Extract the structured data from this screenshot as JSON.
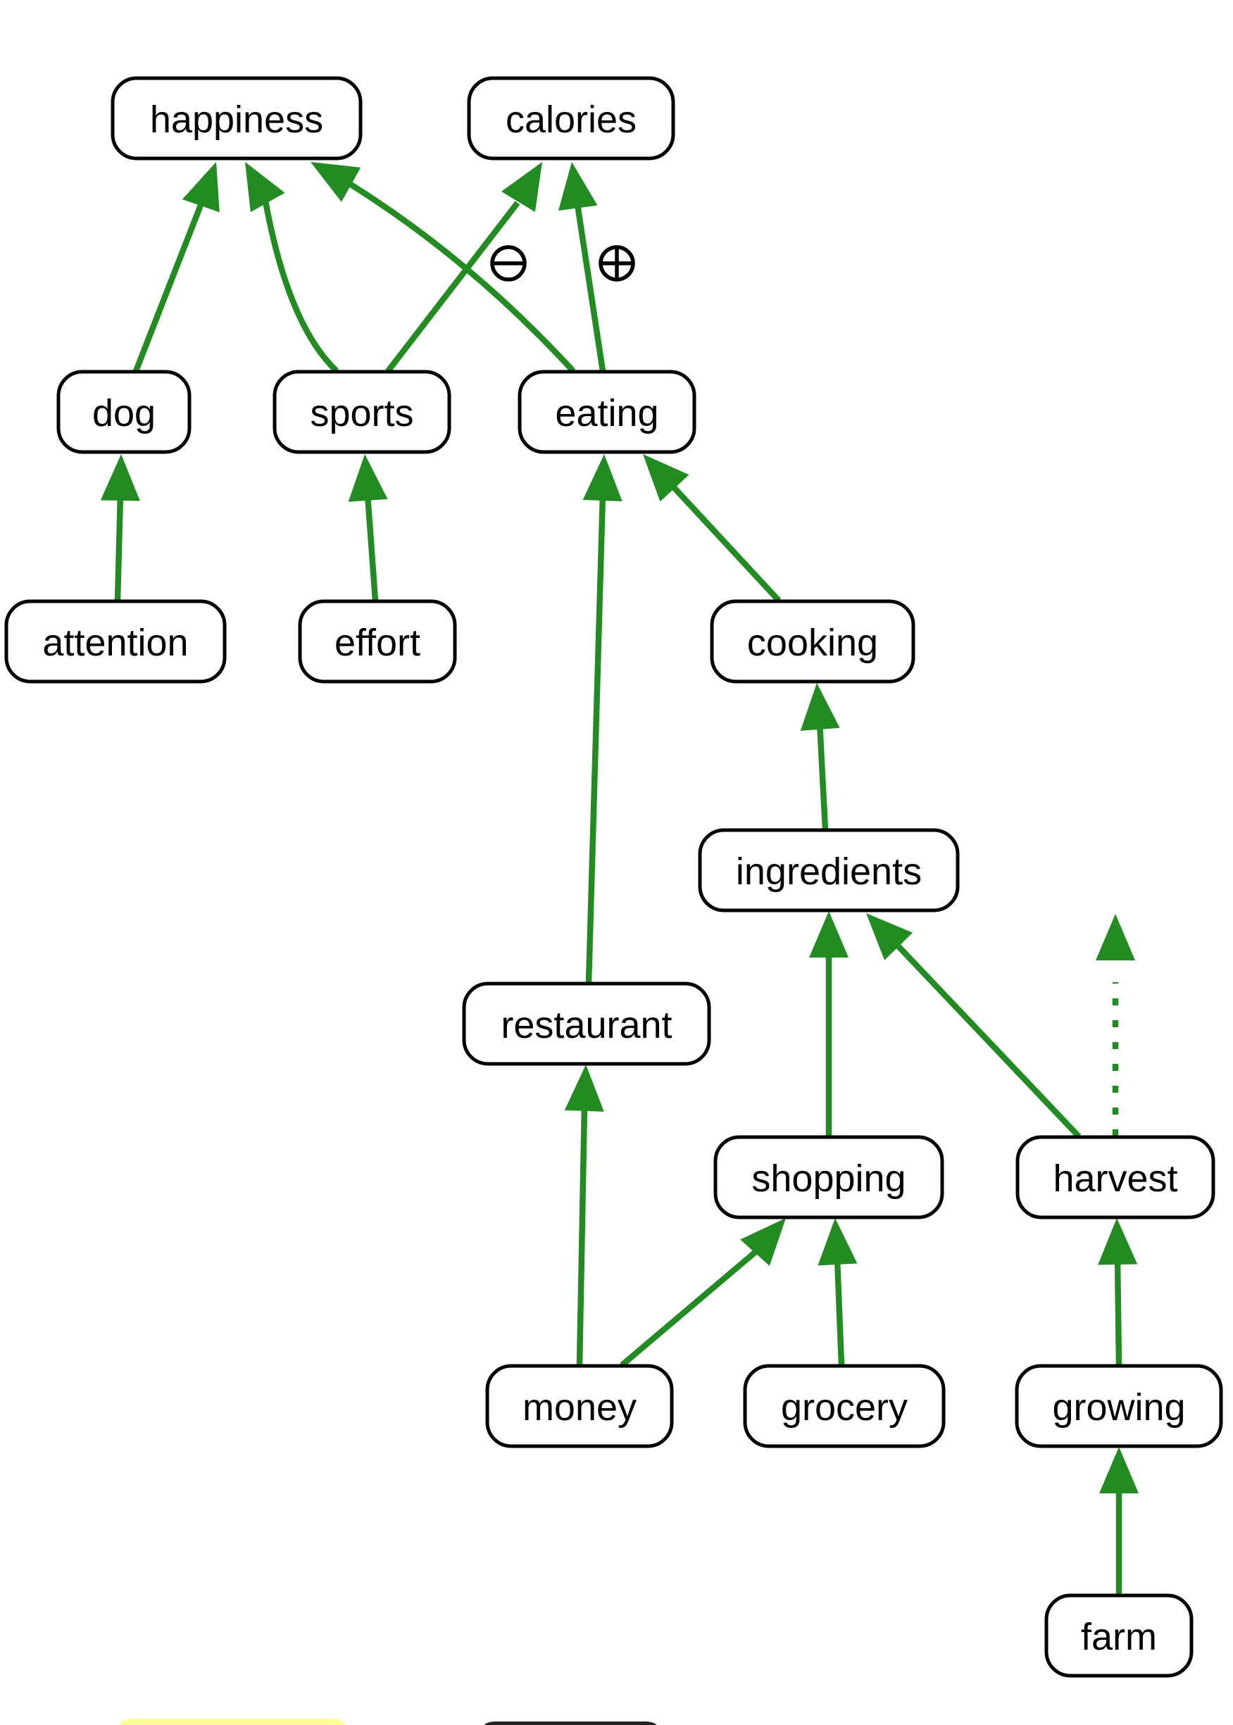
{
  "diagram": {
    "colors": {
      "edge": "#228b22",
      "node_border": "#000000",
      "node_fill": "#ffffff",
      "text": "#000000"
    },
    "nodes": [
      {
        "id": "happiness",
        "label": "happiness"
      },
      {
        "id": "calories",
        "label": "calories"
      },
      {
        "id": "dog",
        "label": "dog"
      },
      {
        "id": "sports",
        "label": "sports"
      },
      {
        "id": "eating",
        "label": "eating"
      },
      {
        "id": "attention",
        "label": "attention"
      },
      {
        "id": "effort",
        "label": "effort"
      },
      {
        "id": "cooking",
        "label": "cooking"
      },
      {
        "id": "ingredients",
        "label": "ingredients"
      },
      {
        "id": "restaurant",
        "label": "restaurant"
      },
      {
        "id": "shopping",
        "label": "shopping"
      },
      {
        "id": "harvest",
        "label": "harvest"
      },
      {
        "id": "money",
        "label": "money"
      },
      {
        "id": "grocery",
        "label": "grocery"
      },
      {
        "id": "growing",
        "label": "growing"
      },
      {
        "id": "farm",
        "label": "farm"
      }
    ],
    "edges": [
      {
        "from": "dog",
        "to": "happiness"
      },
      {
        "from": "sports",
        "to": "happiness"
      },
      {
        "from": "eating",
        "to": "happiness"
      },
      {
        "from": "sports",
        "to": "calories",
        "sign": "minus"
      },
      {
        "from": "eating",
        "to": "calories",
        "sign": "plus"
      },
      {
        "from": "attention",
        "to": "dog"
      },
      {
        "from": "effort",
        "to": "sports"
      },
      {
        "from": "restaurant",
        "to": "eating"
      },
      {
        "from": "cooking",
        "to": "eating"
      },
      {
        "from": "ingredients",
        "to": "cooking"
      },
      {
        "from": "shopping",
        "to": "ingredients"
      },
      {
        "from": "harvest",
        "to": "ingredients"
      },
      {
        "from": "money",
        "to": "restaurant"
      },
      {
        "from": "money",
        "to": "shopping"
      },
      {
        "from": "grocery",
        "to": "shopping"
      },
      {
        "from": "growing",
        "to": "harvest"
      },
      {
        "from": "farm",
        "to": "growing"
      },
      {
        "from": "harvest",
        "to": null,
        "style": "dotted"
      }
    ],
    "signs": [
      {
        "id": "minus",
        "icon": "circled-minus-icon"
      },
      {
        "id": "plus",
        "icon": "circled-plus-icon"
      }
    ]
  }
}
